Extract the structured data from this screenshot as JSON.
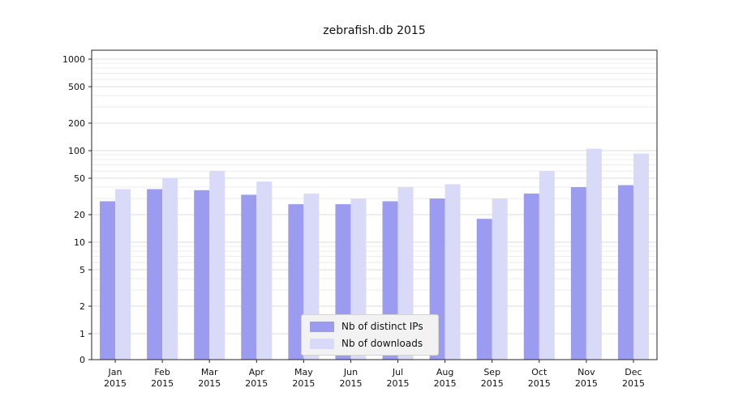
{
  "chart_data": {
    "type": "bar",
    "title": "zebrafish.db 2015",
    "categories": [
      "Jan",
      "Feb",
      "Mar",
      "Apr",
      "May",
      "Jun",
      "Jul",
      "Aug",
      "Sep",
      "Oct",
      "Nov",
      "Dec"
    ],
    "category_year": "2015",
    "series": [
      {
        "name": "Nb of distinct IPs",
        "color": "#9b9bef",
        "values": [
          28,
          38,
          37,
          33,
          26,
          26,
          28,
          30,
          18,
          34,
          40,
          42
        ]
      },
      {
        "name": "Nb of downloads",
        "color": "#d9d9f8",
        "values": [
          38,
          50,
          60,
          46,
          34,
          30,
          40,
          43,
          30,
          60,
          105,
          93
        ]
      }
    ],
    "yscale": "symlog",
    "yticks": [
      0,
      1,
      2,
      5,
      10,
      20,
      50,
      100,
      200,
      500,
      1000
    ],
    "ylim": [
      0,
      1200
    ],
    "xlabel": "",
    "ylabel": "",
    "grid": true,
    "legend_position": "lower center"
  }
}
